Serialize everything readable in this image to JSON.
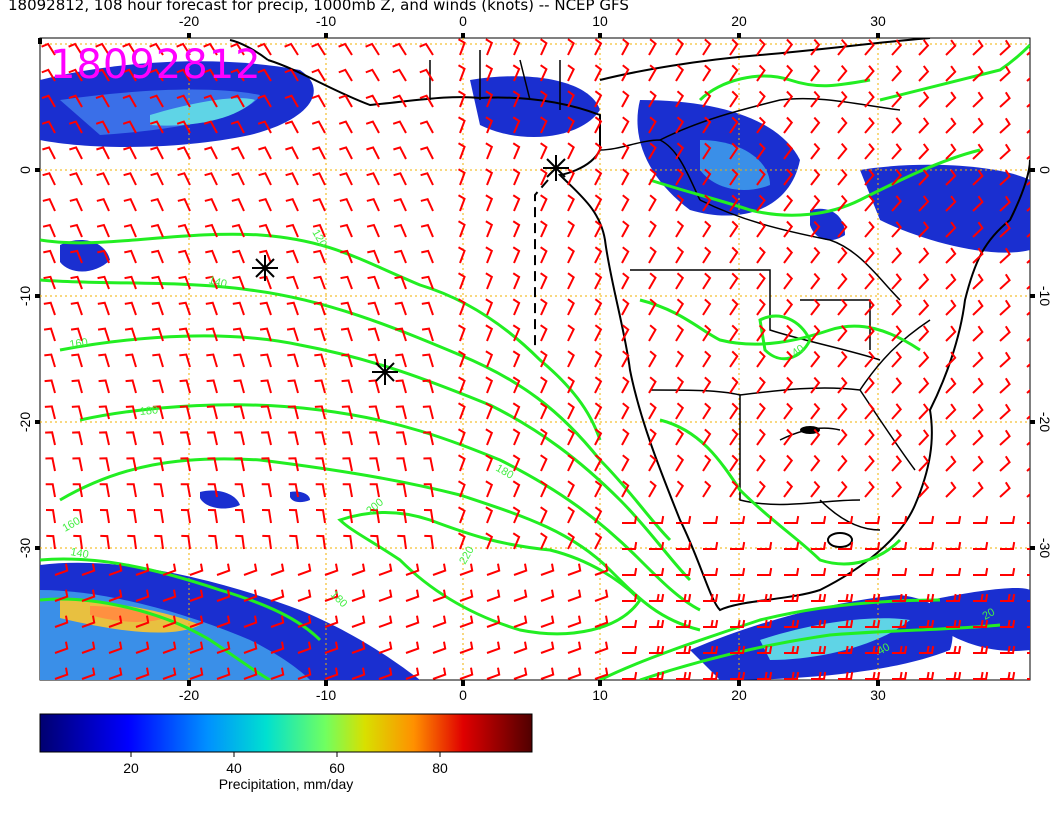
{
  "title": "18092812, 108 hour forecast for precip, 1000mb Z, and winds (knots) -- NCEP GFS",
  "run_label": "18092812",
  "map": {
    "lon_ticks": [
      "-20",
      "-10",
      "0",
      "10",
      "20",
      "30"
    ],
    "lat_ticks": [
      "0",
      "-10",
      "-20",
      "-30"
    ],
    "contour_labels": [
      "120",
      "140",
      "160",
      "180",
      "180",
      "200",
      "220",
      "140",
      "160",
      "180",
      "40",
      "40",
      "20"
    ],
    "colors": {
      "contours": "#22ee22",
      "wind_barbs": "#ff0000",
      "coastline": "#000000",
      "grid": "#f0b000",
      "run_label": "#ff00ff"
    }
  },
  "colorbar": {
    "ticks": [
      "20",
      "40",
      "60",
      "80"
    ],
    "title": "Precipitation, mm/day",
    "colors": [
      "#000080",
      "#0000ff",
      "#0080ff",
      "#00e0e0",
      "#40ff80",
      "#c0e000",
      "#ffc000",
      "#ff4000",
      "#c00000",
      "#500000"
    ]
  }
}
